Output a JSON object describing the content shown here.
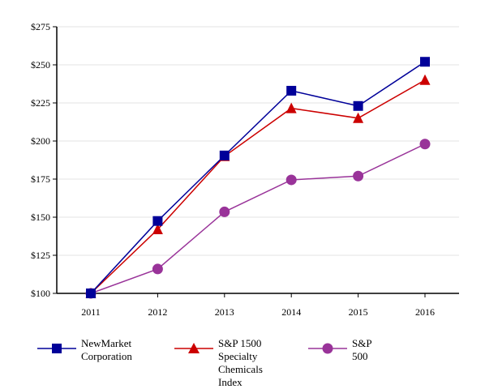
{
  "chart_data": {
    "type": "line",
    "x": [
      "2011",
      "2012",
      "2013",
      "2014",
      "2015",
      "2016"
    ],
    "yticks": [
      "$100",
      "$125",
      "$150",
      "$175",
      "$200",
      "$225",
      "$250",
      "$275"
    ],
    "ylim": [
      100,
      275
    ],
    "grid": true,
    "legend_position": "bottom",
    "series": [
      {
        "name": "NewMarket\nCorporation",
        "marker": "square",
        "color": "#000099",
        "values": [
          100,
          147.5,
          190.5,
          233,
          223,
          252
        ]
      },
      {
        "name": "S&P 1500 Specialty\nChemicals Index",
        "marker": "triangle",
        "color": "#cc0000",
        "values": [
          100,
          142,
          190,
          221.5,
          215,
          240
        ]
      },
      {
        "name": "S&P\n500",
        "marker": "circle",
        "color": "#993399",
        "values": [
          100,
          116,
          153.5,
          174.5,
          177,
          198
        ]
      }
    ]
  }
}
